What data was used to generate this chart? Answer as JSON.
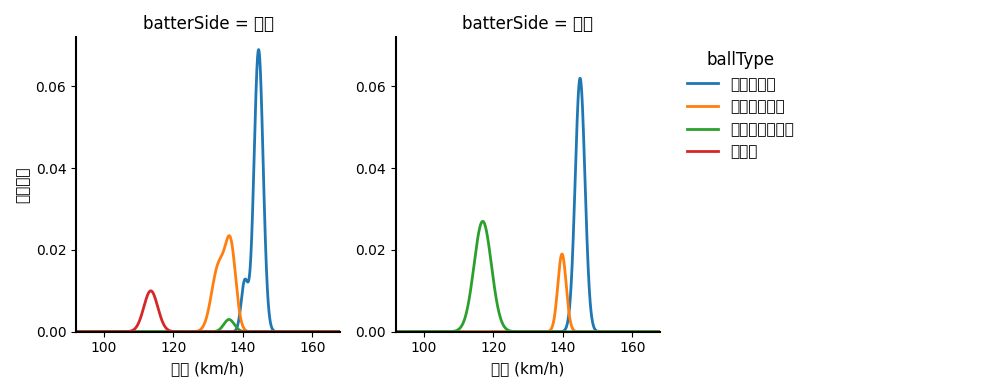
{
  "title_left": "batterSide = 左打",
  "title_right": "batterSide = 右打",
  "xlabel": "球速 (km/h)",
  "ylabel": "確率密度",
  "legend_title": "ballType",
  "legend_items": [
    "ストレート",
    "カットボール",
    "チェンジアップ",
    "カーブ"
  ],
  "colors": {
    "ストレート": "#1f77b4",
    "カットボール": "#ff7f0e",
    "チェンジアップ": "#2ca02c",
    "カーブ": "#d62728"
  },
  "xlim": [
    92,
    168
  ],
  "ylim": [
    0,
    0.072
  ],
  "left": {
    "ストレート": [
      {
        "mean": 144.5,
        "std": 1.3,
        "weight": 0.85
      },
      {
        "mean": 140.5,
        "std": 1.0,
        "weight": 0.15
      }
    ],
    "カットボール": [
      {
        "mean": 136.5,
        "std": 1.5,
        "weight": 0.55
      },
      {
        "mean": 133.0,
        "std": 2.0,
        "weight": 0.45
      }
    ],
    "チェンジアップ": [
      {
        "mean": 136.0,
        "std": 1.5,
        "weight": 1.0
      }
    ],
    "カーブ": [
      {
        "mean": 113.5,
        "std": 2.0,
        "weight": 1.0
      }
    ]
  },
  "left_peaks": {
    "ストレート": 0.069,
    "カットボール": 0.0235,
    "チェンジアップ": 0.003,
    "カーブ": 0.01
  },
  "right": {
    "ストレート": [
      {
        "mean": 145.0,
        "std": 1.4,
        "weight": 1.0
      }
    ],
    "カットボール": [
      {
        "mean": 139.8,
        "std": 1.2,
        "weight": 1.0
      }
    ],
    "チェンジアップ": [
      {
        "mean": 117.0,
        "std": 2.5,
        "weight": 1.0
      }
    ],
    "カーブ": null
  },
  "right_peaks": {
    "ストレート": 0.062,
    "カットボール": 0.019,
    "チェンジアップ": 0.027,
    "カーブ": 0
  },
  "yticks": [
    0.0,
    0.02,
    0.04,
    0.06
  ],
  "xticks": [
    100,
    120,
    140,
    160
  ],
  "bg_color": "#ffffff",
  "linewidth": 2.0
}
